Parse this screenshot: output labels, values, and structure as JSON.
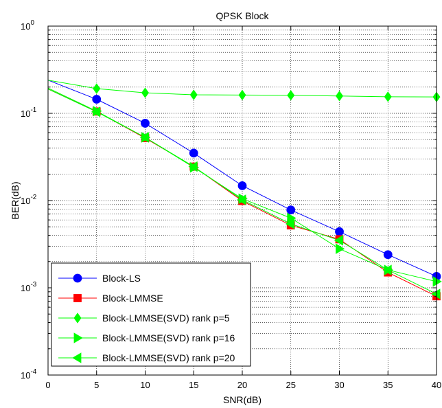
{
  "chart_data": {
    "type": "line",
    "title": "QPSK Block",
    "xlabel": "SNR(dB)",
    "ylabel": "BER(dB)",
    "xlim": [
      0,
      40
    ],
    "ylim": [
      0.0001,
      1
    ],
    "yscale": "log",
    "grid": true,
    "legend_position": "bottom-left",
    "x_ticks": [
      0,
      5,
      10,
      15,
      20,
      25,
      30,
      35,
      40
    ],
    "y_ticks": [
      {
        "value": 0.0001,
        "base": "10",
        "exp": "-4"
      },
      {
        "value": 0.001,
        "base": "10",
        "exp": "-3"
      },
      {
        "value": 0.01,
        "base": "10",
        "exp": "-2"
      },
      {
        "value": 0.1,
        "base": "10",
        "exp": "-1"
      },
      {
        "value": 1,
        "base": "10",
        "exp": "0"
      }
    ],
    "series": [
      {
        "name": "Block-LS",
        "color": "#0000ff",
        "marker": "circle",
        "x": [
          0,
          5,
          10,
          15,
          20,
          25,
          30,
          35,
          40
        ],
        "y": [
          0.24,
          0.145,
          0.077,
          0.035,
          0.0148,
          0.0078,
          0.0044,
          0.0024,
          0.00135
        ]
      },
      {
        "name": "Block-LMMSE",
        "color": "#ff0000",
        "marker": "square",
        "x": [
          0,
          5,
          10,
          15,
          20,
          25,
          30,
          35,
          40
        ],
        "y": [
          0.19,
          0.105,
          0.052,
          0.0245,
          0.0099,
          0.0052,
          0.0036,
          0.0015,
          0.0008
        ]
      },
      {
        "name": "Block-LMMSE(SVD) rank p=5",
        "color": "#00ff00",
        "marker": "diamond",
        "x": [
          0,
          5,
          10,
          15,
          20,
          25,
          30,
          35,
          40
        ],
        "y": [
          0.24,
          0.192,
          0.172,
          0.163,
          0.162,
          0.161,
          0.158,
          0.155,
          0.154
        ]
      },
      {
        "name": "Block-LMMSE(SVD) rank p=16",
        "color": "#00ff00",
        "marker": "triangle-right",
        "x": [
          0,
          5,
          10,
          15,
          20,
          25,
          30,
          35,
          40
        ],
        "y": [
          0.195,
          0.106,
          0.053,
          0.024,
          0.0105,
          0.0063,
          0.0028,
          0.0016,
          0.00118
        ]
      },
      {
        "name": "Block-LMMSE(SVD) rank p=20",
        "color": "#00ff00",
        "marker": "triangle-left",
        "x": [
          0,
          5,
          10,
          15,
          20,
          25,
          30,
          35,
          40
        ],
        "y": [
          0.19,
          0.104,
          0.053,
          0.0245,
          0.0102,
          0.0054,
          0.0035,
          0.0016,
          0.00085
        ]
      }
    ]
  }
}
